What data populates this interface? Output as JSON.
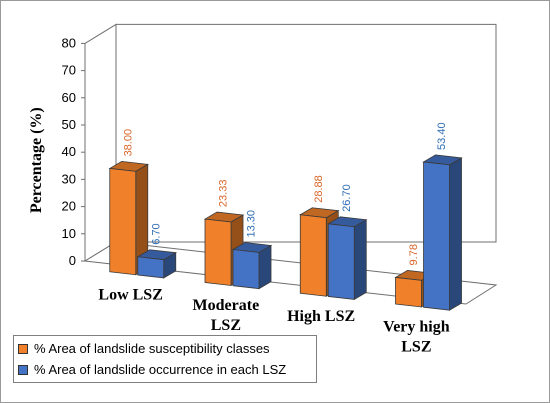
{
  "chart_data": {
    "type": "bar",
    "title": "",
    "xlabel": "",
    "ylabel": "Percentage (%)",
    "ylim": [
      0,
      80
    ],
    "yticks": [
      "0",
      "10",
      "20",
      "30",
      "40",
      "50",
      "60",
      "70",
      "80"
    ],
    "categories": [
      {
        "lines": [
          "Low LSZ"
        ]
      },
      {
        "lines": [
          "Moderate",
          "LSZ"
        ]
      },
      {
        "lines": [
          "High LSZ"
        ]
      },
      {
        "lines": [
          "Very high",
          "LSZ"
        ]
      }
    ],
    "series": [
      {
        "name": "% Area of landslide susceptibility classes",
        "values": [
          38.0,
          23.33,
          28.88,
          9.78
        ],
        "labels": [
          "38.00",
          "23.33",
          "28.88",
          "9.78"
        ],
        "color": "#F0812A"
      },
      {
        "name": "% Area of landslide occurrence in each LSZ",
        "values": [
          6.7,
          13.3,
          26.7,
          53.4
        ],
        "labels": [
          "6.70",
          "13.30",
          "26.70",
          "53.40"
        ],
        "color": "#4472C4"
      }
    ],
    "label_colors": [
      "#D9662A",
      "#2F6EB5"
    ],
    "style": "3d-clustered-column",
    "grid": false,
    "legend": "bottom-left"
  }
}
